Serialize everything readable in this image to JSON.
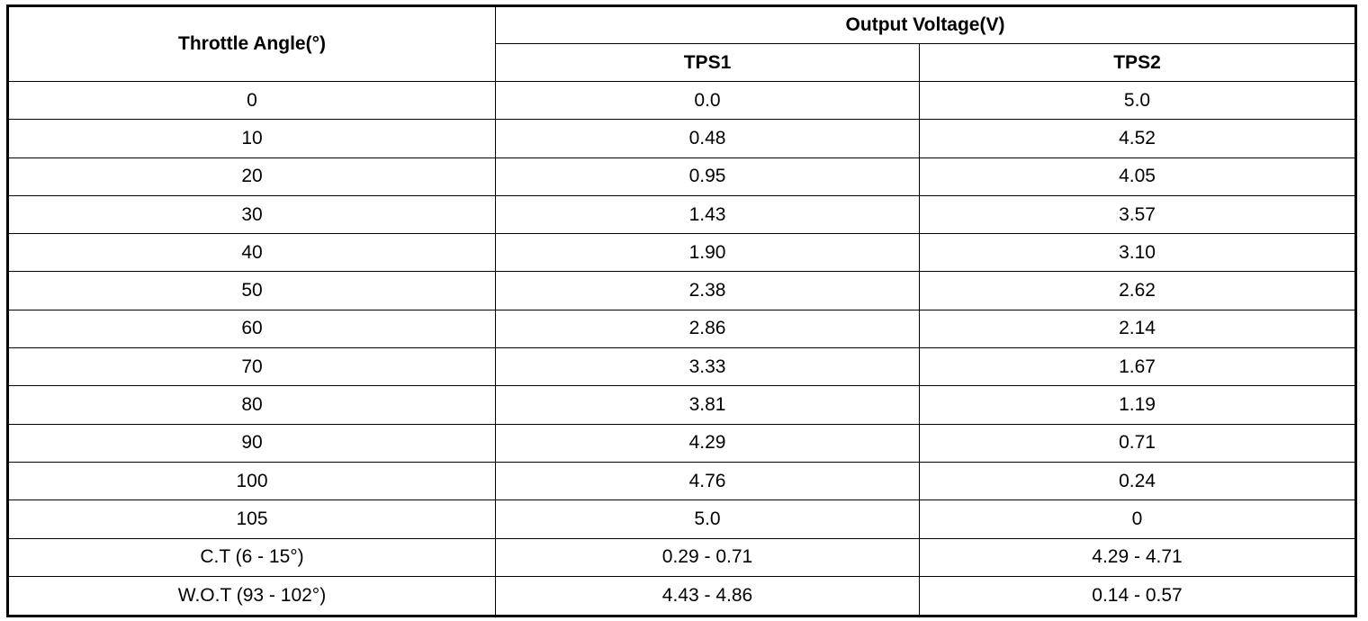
{
  "table": {
    "header": {
      "first": "Throttle Angle(°)",
      "group": "Output Voltage(V)",
      "columns": [
        "TPS1",
        "TPS2"
      ]
    },
    "rows": [
      [
        "0",
        "0.0",
        "5.0"
      ],
      [
        "10",
        "0.48",
        "4.52"
      ],
      [
        "20",
        "0.95",
        "4.05"
      ],
      [
        "30",
        "1.43",
        "3.57"
      ],
      [
        "40",
        "1.90",
        "3.10"
      ],
      [
        "50",
        "2.38",
        "2.62"
      ],
      [
        "60",
        "2.86",
        "2.14"
      ],
      [
        "70",
        "3.33",
        "1.67"
      ],
      [
        "80",
        "3.81",
        "1.19"
      ],
      [
        "90",
        "4.29",
        "0.71"
      ],
      [
        "100",
        "4.76",
        "0.24"
      ],
      [
        "105",
        "5.0",
        "0"
      ],
      [
        "C.T (6 - 15°)",
        "0.29 - 0.71",
        "4.29 - 4.71"
      ],
      [
        "W.O.T (93 - 102°)",
        "4.43 - 4.86",
        "0.14 - 0.57"
      ]
    ]
  }
}
